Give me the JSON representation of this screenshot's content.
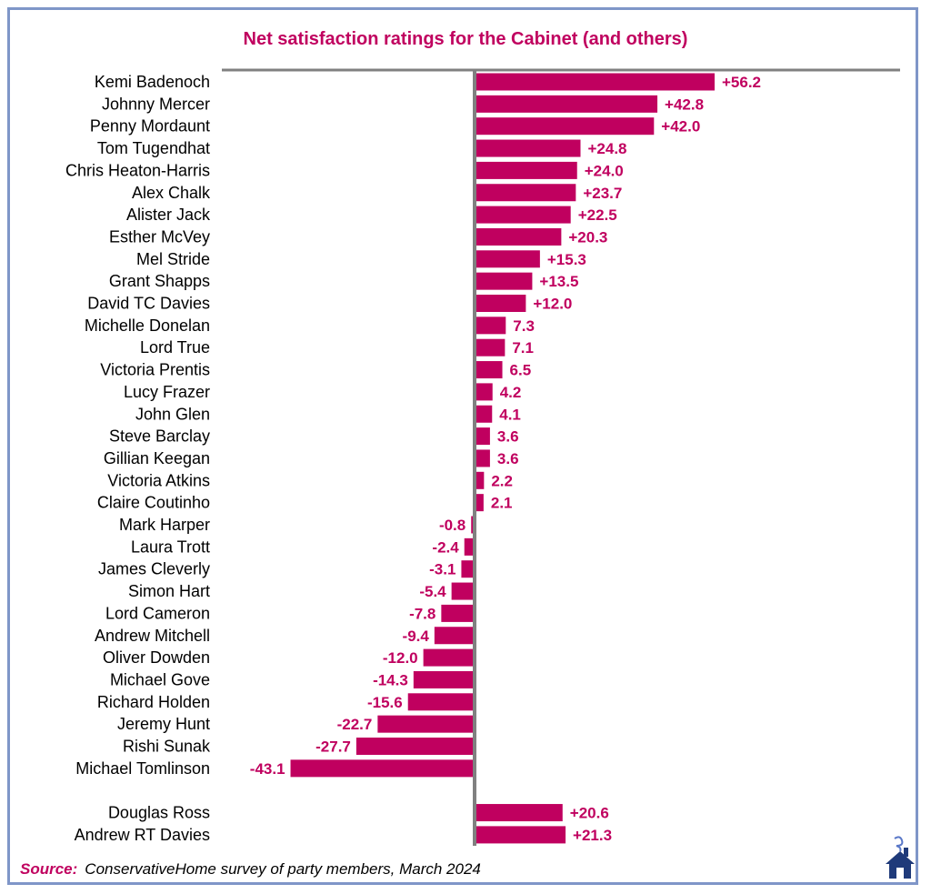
{
  "title": "Net satisfaction ratings for the Cabinet (and others)",
  "source": {
    "label": "Source:",
    "text": "ConservativeHome survey of party members, March 2024"
  },
  "logo": {
    "icon": "conservativehome-house-icon"
  },
  "colors": {
    "bar": "#c0005f",
    "label": "#c0005f",
    "axis": "#808080",
    "frame": "#7f96c8"
  },
  "chart_data": {
    "type": "bar",
    "orientation": "horizontal",
    "title": "Net satisfaction ratings for the Cabinet (and others)",
    "categories": [
      "Kemi Badenoch",
      "Johnny Mercer",
      "Penny Mordaunt",
      "Tom Tugendhat",
      "Chris Heaton-Harris",
      "Alex Chalk",
      "Alister Jack",
      "Esther McVey",
      "Mel Stride",
      "Grant Shapps",
      "David TC Davies",
      "Michelle Donelan",
      "Lord True",
      "Victoria Prentis",
      "Lucy Frazer",
      "John Glen",
      "Steve Barclay",
      "Gillian Keegan",
      "Victoria Atkins",
      "Claire Coutinho",
      "Mark Harper",
      "Laura Trott",
      "James Cleverly",
      "Simon Hart",
      "Lord Cameron",
      "Andrew Mitchell",
      "Oliver Dowden",
      "Michael Gove",
      "Richard Holden",
      "Jeremy Hunt",
      "Rishi Sunak",
      "Michael Tomlinson",
      "",
      "Douglas Ross",
      "Andrew RT Davies"
    ],
    "values": [
      56.2,
      42.8,
      42.0,
      24.8,
      24.0,
      23.7,
      22.5,
      20.3,
      15.3,
      13.5,
      12.0,
      7.3,
      7.1,
      6.5,
      4.2,
      4.1,
      3.6,
      3.6,
      2.2,
      2.1,
      -0.8,
      -2.4,
      -3.1,
      -5.4,
      -7.8,
      -9.4,
      -12.0,
      -14.3,
      -15.6,
      -22.7,
      -27.7,
      -43.1,
      null,
      20.6,
      21.3
    ],
    "labels": [
      "+56.2",
      "+42.8",
      "+42.0",
      "+24.8",
      "+24.0",
      "+23.7",
      "+22.5",
      "+20.3",
      "+15.3",
      "+13.5",
      "+12.0",
      "7.3",
      "7.1",
      "6.5",
      "4.2",
      "4.1",
      "3.6",
      "3.6",
      "2.2",
      "2.1",
      "-0.8",
      "-2.4",
      "-3.1",
      "-5.4",
      "-7.8",
      "-9.4",
      "-12.0",
      "-14.3",
      "-15.6",
      "-22.7",
      "-27.7",
      "-43.1",
      "",
      "+20.6",
      "+21.3"
    ],
    "xlim": [
      -43.1,
      56.2
    ],
    "grid": false,
    "legend": "none"
  }
}
